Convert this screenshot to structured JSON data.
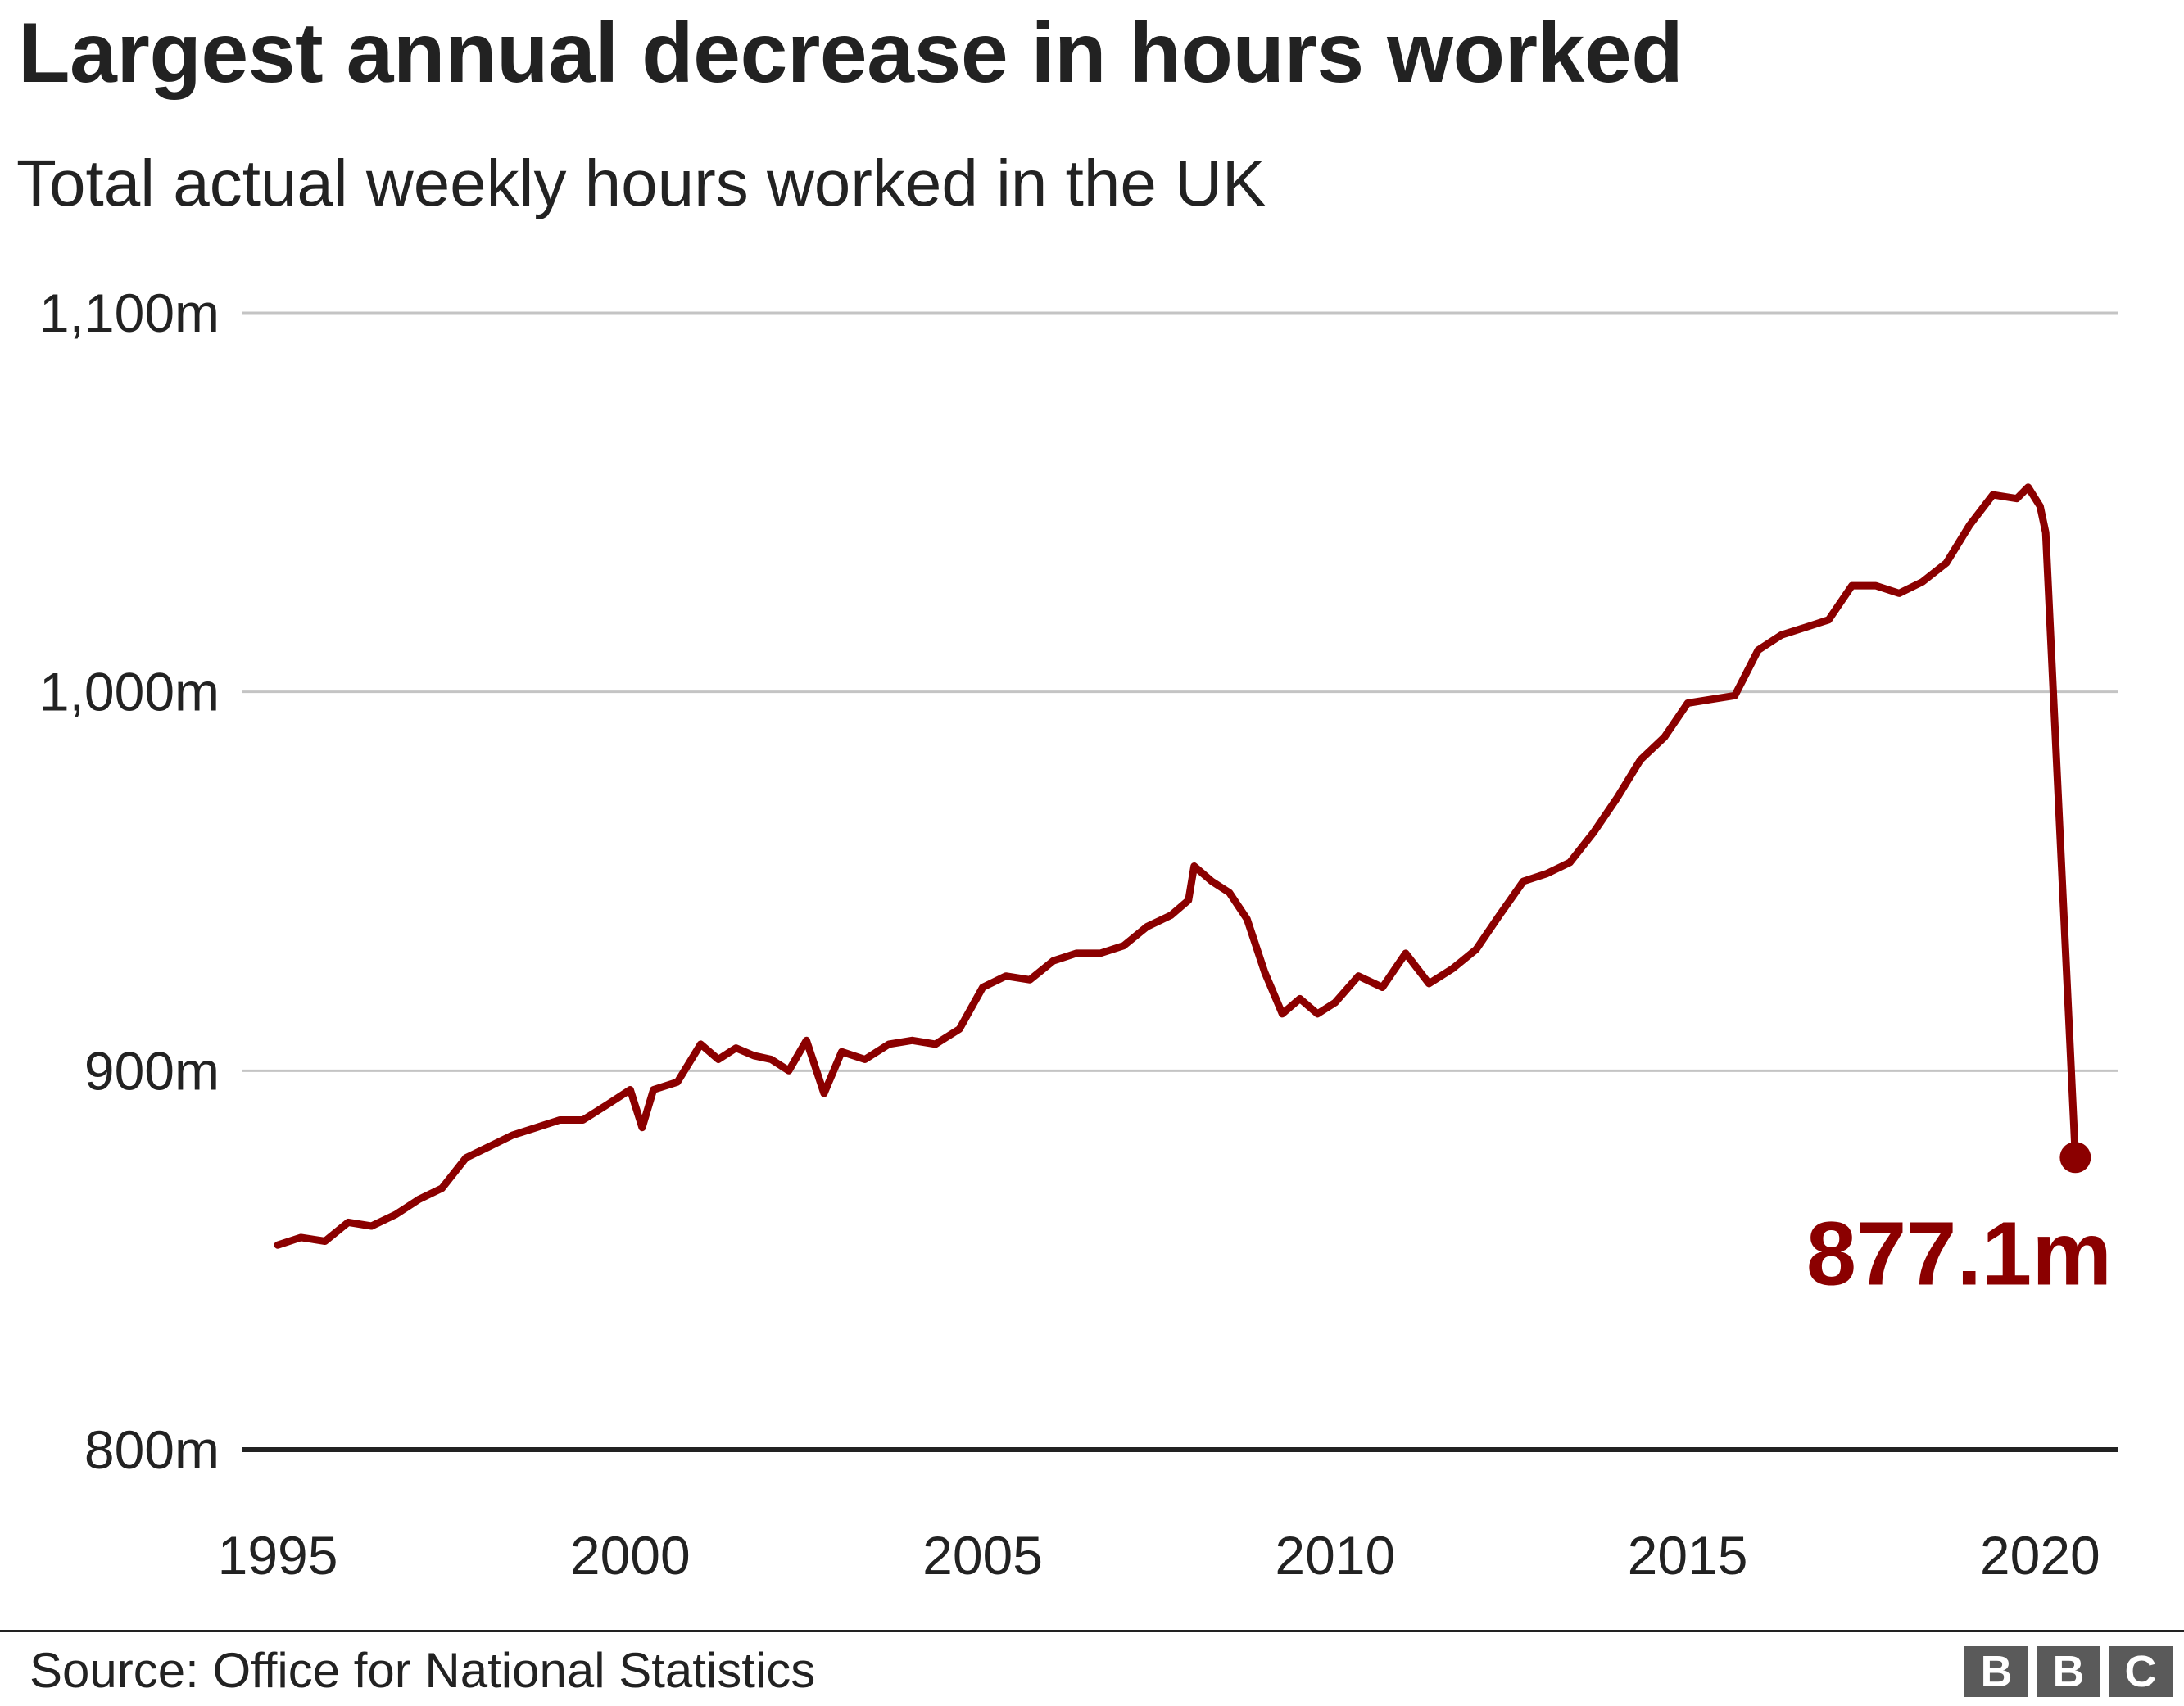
{
  "header": {
    "title": "Largest annual decrease in hours worked",
    "subtitle": "Total actual weekly hours worked in the UK"
  },
  "footer": {
    "source": "Source: Office for National Statistics",
    "logo": [
      "B",
      "B",
      "C"
    ]
  },
  "colors": {
    "line": "#8b0000",
    "grid": "#c4c4c4",
    "baseline": "#222222",
    "text": "#222222"
  },
  "chart_data": {
    "type": "line",
    "title": "Largest annual decrease in hours worked",
    "subtitle": "Total actual weekly hours worked in the UK",
    "xlabel": "",
    "ylabel": "",
    "ylim": [
      800,
      1100
    ],
    "xlim": [
      1994.5,
      2021.1
    ],
    "grid": true,
    "x_ticks": [
      1995,
      2000,
      2005,
      2010,
      2015,
      2020
    ],
    "x_tick_labels": [
      "1995",
      "2000",
      "2005",
      "2010",
      "2015",
      "2020"
    ],
    "y_ticks": [
      800,
      900,
      1000,
      1100
    ],
    "y_tick_labels": [
      "800m",
      "900m",
      "1,000m",
      "1,100m"
    ],
    "annotation": {
      "text": "877.1m",
      "x": 2020.5,
      "y": 877.1
    },
    "series": [
      {
        "x": [
          1995.0,
          1995.33,
          1995.67,
          1996.0,
          1996.33,
          1996.67,
          1997.0,
          1997.33,
          1997.67,
          1998.0,
          1998.33,
          1998.67,
          1999.0,
          1999.33,
          1999.67,
          2000.0,
          2000.17,
          2000.33,
          2000.67,
          2001.0,
          2001.25,
          2001.5,
          2001.75,
          2002.0,
          2002.25,
          2002.5,
          2002.75,
          2003.0,
          2003.33,
          2003.67,
          2004.0,
          2004.33,
          2004.67,
          2005.0,
          2005.33,
          2005.67,
          2006.0,
          2006.33,
          2006.67,
          2007.0,
          2007.33,
          2007.67,
          2007.92,
          2008.0,
          2008.25,
          2008.5,
          2008.75,
          2009.0,
          2009.25,
          2009.5,
          2009.75,
          2010.0,
          2010.33,
          2010.67,
          2011.0,
          2011.33,
          2011.67,
          2012.0,
          2012.33,
          2012.67,
          2013.0,
          2013.33,
          2013.67,
          2014.0,
          2014.33,
          2014.67,
          2015.0,
          2015.33,
          2015.67,
          2016.0,
          2016.33,
          2016.67,
          2017.0,
          2017.33,
          2017.67,
          2018.0,
          2018.33,
          2018.67,
          2019.0,
          2019.33,
          2019.67,
          2019.83,
          2020.0,
          2020.08,
          2020.5
        ],
        "values": [
          854,
          856,
          855,
          860,
          859,
          862,
          866,
          869,
          877,
          880,
          883,
          885,
          887,
          887,
          891,
          895,
          885,
          895,
          897,
          907,
          903,
          906,
          904,
          903,
          900,
          908,
          894,
          905,
          903,
          907,
          908,
          907,
          911,
          922,
          925,
          924,
          929,
          931,
          931,
          933,
          938,
          941,
          945,
          954,
          950,
          947,
          940,
          926,
          915,
          919,
          915,
          918,
          925,
          922,
          931,
          923,
          927,
          932,
          941,
          950,
          952,
          955,
          963,
          972,
          982,
          988,
          997,
          998,
          999,
          1011,
          1015,
          1017,
          1019,
          1028,
          1028,
          1026,
          1029,
          1034,
          1044,
          1052,
          1051,
          1054,
          1049,
          1042,
          877.1
        ]
      }
    ]
  }
}
